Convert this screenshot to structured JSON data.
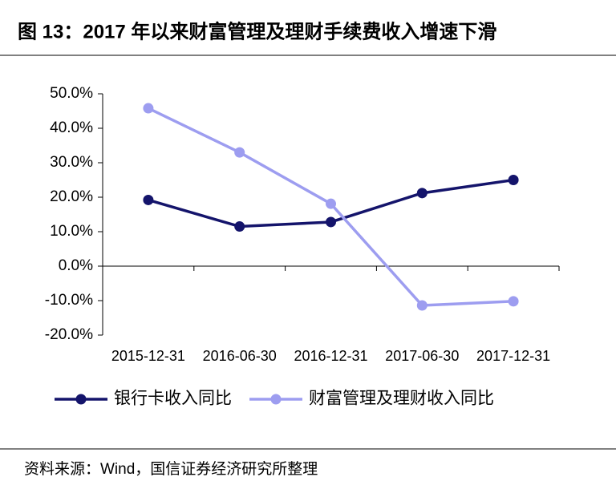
{
  "chart_data": {
    "type": "line",
    "title": "图 13：2017 年以来财富管理及理财手续费收入增速下滑",
    "categories": [
      "2015-12-31",
      "2016-06-30",
      "2016-12-31",
      "2017-06-30",
      "2017-12-31"
    ],
    "series": [
      {
        "name": "银行卡收入同比",
        "color": "#14146b",
        "values": [
          19.2,
          11.5,
          12.8,
          21.2,
          25.0
        ]
      },
      {
        "name": "财富管理及理财收入同比",
        "color": "#9d9df0",
        "values": [
          45.8,
          33.0,
          18.1,
          -11.4,
          -10.2
        ]
      }
    ],
    "ylim": [
      -20,
      50
    ],
    "yticks": [
      {
        "value": -20,
        "label": "-20.0%"
      },
      {
        "value": -10,
        "label": "-10.0%"
      },
      {
        "value": 0,
        "label": "0.0%"
      },
      {
        "value": 10,
        "label": "10.0%"
      },
      {
        "value": 20,
        "label": "20.0%"
      },
      {
        "value": 30,
        "label": "30.0%"
      },
      {
        "value": 40,
        "label": "40.0%"
      },
      {
        "value": 50,
        "label": "50.0%"
      }
    ],
    "legend": "bottom",
    "source": "资料来源：Wind，国信证券经济研究所整理"
  }
}
